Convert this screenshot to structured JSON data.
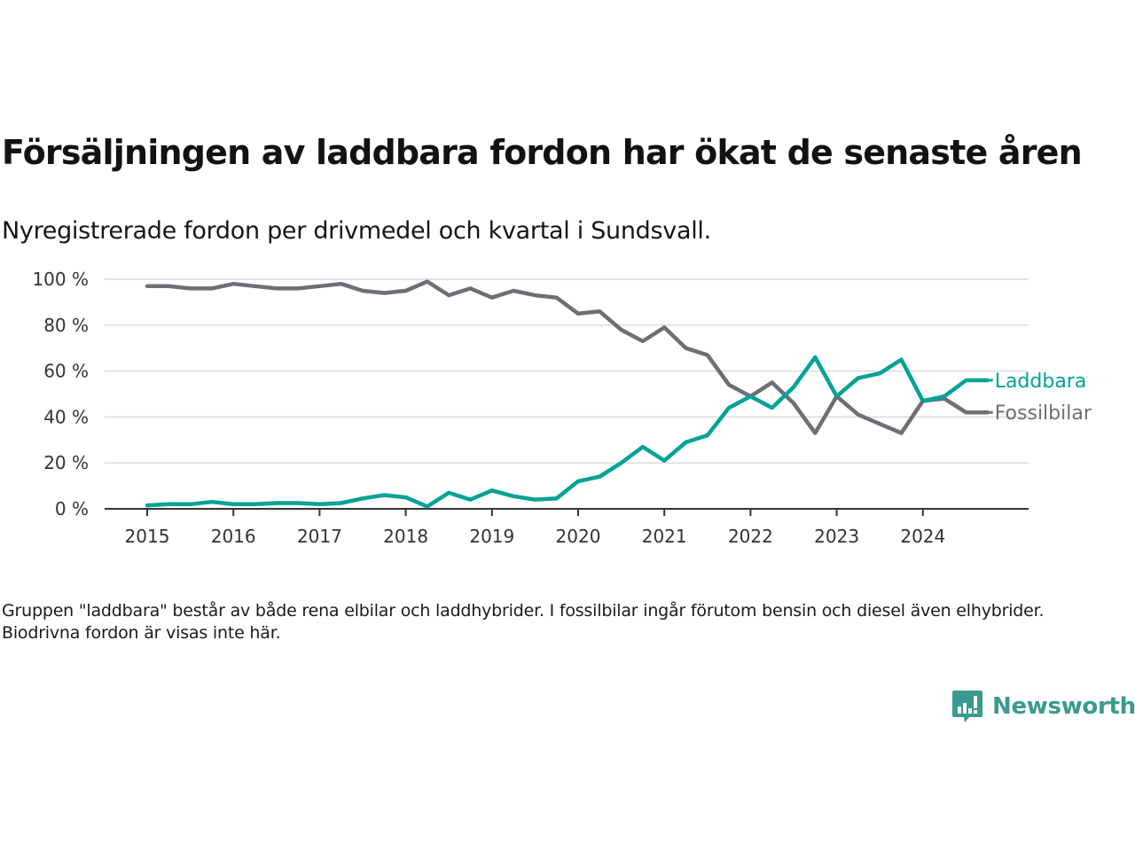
{
  "title": "Försäljningen av laddbara fordon har ökat de senaste åren",
  "subtitle": "Nyregistrerade fordon per drivmedel och kvartal i Sundsvall.",
  "note": "Gruppen \"laddbara\" består av både rena elbilar och laddhybrider. I fossilbilar ingår förutom bensin och diesel även elhybrider. Biodrivna fordon är visas inte här.",
  "logo": {
    "icon": "newsworthy-chart-icon",
    "text": "Newsworthy",
    "color": "#3a9a8f"
  },
  "chart_data": {
    "type": "line",
    "title": "Försäljningen av laddbara fordon har ökat de senaste åren",
    "subtitle": "Nyregistrerade fordon per drivmedel och kvartal i Sundsvall.",
    "xlabel": "",
    "ylabel": "",
    "x_unit": "quarter",
    "x_start": 2015,
    "x_ticks": [
      "2015",
      "2016",
      "2017",
      "2018",
      "2019",
      "2020",
      "2021",
      "2022",
      "2023",
      "2024"
    ],
    "y_ticks": [
      "0 %",
      "20 %",
      "40 %",
      "60 %",
      "80 %",
      "100 %"
    ],
    "y_tick_values": [
      0,
      20,
      40,
      60,
      80,
      100
    ],
    "ylim": [
      0,
      100
    ],
    "grid": "horizontal",
    "legend": "inline-right",
    "x": [
      "2015 K1",
      "2015 K2",
      "2015 K3",
      "2015 K4",
      "2016 K1",
      "2016 K2",
      "2016 K3",
      "2016 K4",
      "2017 K1",
      "2017 K2",
      "2017 K3",
      "2017 K4",
      "2018 K1",
      "2018 K2",
      "2018 K3",
      "2018 K4",
      "2019 K1",
      "2019 K2",
      "2019 K3",
      "2019 K4",
      "2020 K1",
      "2020 K2",
      "2020 K3",
      "2020 K4",
      "2021 K1",
      "2021 K2",
      "2021 K3",
      "2021 K4",
      "2022 K1",
      "2022 K2",
      "2022 K3",
      "2022 K4",
      "2023 K1",
      "2023 K2",
      "2023 K3",
      "2023 K4",
      "2024 K1",
      "2024 K2",
      "2024 K3",
      "2024 K4"
    ],
    "series": [
      {
        "name": "Laddbara",
        "color": "#00a396",
        "values": [
          1.5,
          2,
          2,
          3,
          2,
          2,
          2.5,
          2.5,
          2,
          2.5,
          4.5,
          6,
          5,
          1,
          7,
          4,
          8,
          5.5,
          4,
          4.5,
          12,
          14,
          20,
          27,
          21,
          29,
          32,
          44,
          49,
          44,
          53,
          66,
          49,
          57,
          59,
          65,
          47,
          49,
          56,
          56
        ]
      },
      {
        "name": "Fossilbilar",
        "color": "#6e6e75",
        "values": [
          97,
          97,
          96,
          96,
          98,
          97,
          96,
          96,
          97,
          98,
          95,
          94,
          95,
          99,
          93,
          96,
          92,
          95,
          93,
          92,
          85,
          86,
          78,
          73,
          79,
          70,
          67,
          54,
          49,
          55,
          46,
          33,
          49,
          41,
          37,
          33,
          47,
          48,
          42,
          42
        ]
      }
    ]
  }
}
